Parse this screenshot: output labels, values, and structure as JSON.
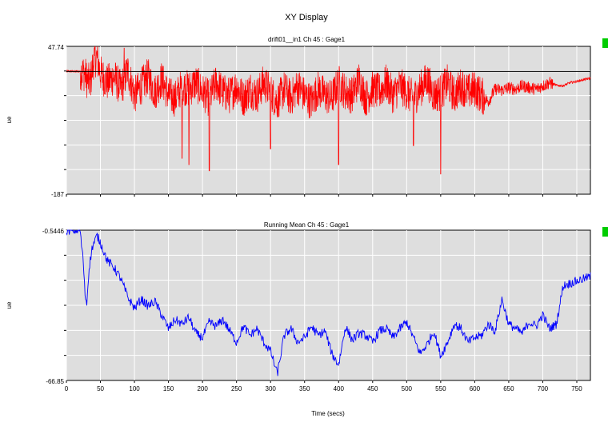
{
  "window_title": "XY Display",
  "chart_data": [
    {
      "type": "line",
      "title": "drift01__in1  Ch 45 : Gage1",
      "ylabel": "ue",
      "xlabel": "",
      "xlim": [
        0,
        770
      ],
      "ylim": [
        -187,
        47.74
      ],
      "ytick_labels": [
        "47.74",
        "-187"
      ],
      "reference_line": 8,
      "grid": true,
      "series": [
        {
          "color": "#ff0000",
          "x": [
            0,
            20,
            27,
            30,
            35,
            40,
            45,
            50,
            60,
            70,
            80,
            90,
            100,
            110,
            120,
            130,
            140,
            150,
            160,
            170,
            180,
            190,
            200,
            210,
            220,
            230,
            240,
            250,
            260,
            270,
            280,
            290,
            300,
            310,
            320,
            330,
            340,
            350,
            360,
            370,
            380,
            390,
            400,
            410,
            420,
            430,
            440,
            450,
            460,
            470,
            480,
            490,
            500,
            510,
            520,
            530,
            540,
            550,
            560,
            570,
            580,
            590,
            600,
            610,
            620,
            630,
            640,
            650,
            660,
            670,
            680,
            690,
            700,
            710,
            720,
            730,
            740,
            750,
            760,
            770
          ],
          "y": [
            8,
            8,
            5,
            -5,
            -10,
            25,
            30,
            5,
            -10,
            0,
            -20,
            10,
            -30,
            -15,
            0,
            -25,
            -5,
            -30,
            -35,
            -15,
            -20,
            -10,
            -25,
            -35,
            -10,
            -25,
            -30,
            -15,
            -35,
            -20,
            -30,
            -10,
            -25,
            -40,
            -20,
            -35,
            -15,
            -30,
            -40,
            -20,
            -30,
            -35,
            -10,
            -25,
            -30,
            -5,
            -35,
            -20,
            -25,
            -10,
            -30,
            -15,
            -25,
            -35,
            -20,
            -5,
            -30,
            -25,
            -10,
            -30,
            -15,
            -25,
            -20,
            -30,
            -40,
            -20,
            -22,
            -18,
            -20,
            -15,
            -18,
            -20,
            -15,
            -10,
            -14,
            -15,
            -10,
            -8,
            -5,
            -3
          ],
          "noise_amplitude": 30,
          "noise_spikes": [
            [
              85,
              45
            ],
            [
              170,
              -130
            ],
            [
              180,
              -140
            ],
            [
              210,
              -150
            ],
            [
              300,
              -115
            ],
            [
              400,
              -140
            ],
            [
              510,
              -110
            ],
            [
              550,
              -155
            ]
          ]
        }
      ]
    },
    {
      "type": "line",
      "title": "Running Mean  Ch 45 : Gage1",
      "ylabel": "ue",
      "xlabel": "Time (secs)",
      "xlim": [
        0,
        770
      ],
      "ylim": [
        -66.85,
        -0.5446
      ],
      "ytick_labels": [
        "-0.5446",
        "-66.85"
      ],
      "xticks": [
        0,
        50,
        100,
        150,
        200,
        250,
        300,
        350,
        400,
        450,
        500,
        550,
        600,
        650,
        700,
        750
      ],
      "grid": true,
      "series": [
        {
          "color": "#0000ff",
          "x": [
            0,
            10,
            20,
            25,
            27,
            30,
            33,
            38,
            45,
            50,
            55,
            60,
            70,
            80,
            90,
            100,
            110,
            120,
            130,
            140,
            150,
            160,
            170,
            180,
            190,
            200,
            210,
            220,
            230,
            240,
            250,
            260,
            270,
            280,
            290,
            300,
            310,
            320,
            330,
            340,
            350,
            360,
            370,
            380,
            390,
            400,
            410,
            420,
            430,
            440,
            450,
            460,
            470,
            480,
            490,
            500,
            510,
            520,
            530,
            540,
            550,
            560,
            570,
            580,
            590,
            600,
            610,
            620,
            630,
            640,
            650,
            660,
            670,
            680,
            690,
            700,
            710,
            720,
            730,
            740,
            750,
            760,
            770
          ],
          "y": [
            -0.5446,
            -0.6,
            -0.6,
            -15,
            -28,
            -33,
            -18,
            -8,
            -3,
            -6,
            -10,
            -14,
            -17,
            -22,
            -30,
            -35,
            -31,
            -34,
            -32,
            -38,
            -44,
            -40,
            -42,
            -39,
            -46,
            -48,
            -41,
            -43,
            -40,
            -45,
            -50,
            -43,
            -47,
            -44,
            -50,
            -54,
            -64,
            -47,
            -44,
            -50,
            -48,
            -43,
            -47,
            -45,
            -55,
            -60,
            -43,
            -49,
            -46,
            -47,
            -50,
            -45,
            -44,
            -48,
            -44,
            -41,
            -48,
            -55,
            -51,
            -45,
            -56,
            -50,
            -42,
            -44,
            -50,
            -48,
            -47,
            -42,
            -45,
            -31,
            -42,
            -44,
            -46,
            -41,
            -43,
            -38,
            -44,
            -42,
            -25,
            -24,
            -23,
            -22,
            -21
          ],
          "noise_amplitude": 2
        }
      ]
    }
  ]
}
